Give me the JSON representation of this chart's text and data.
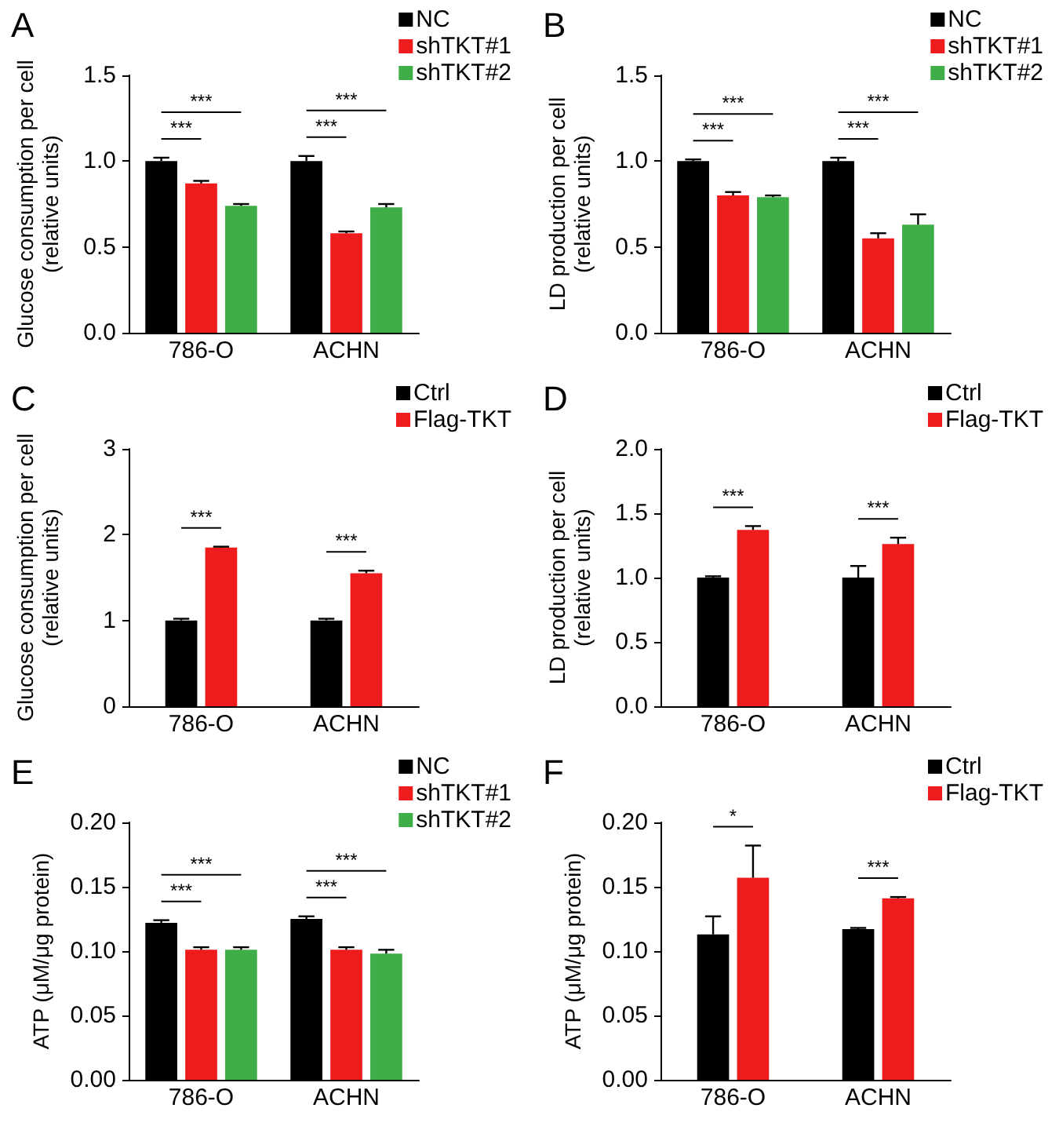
{
  "chart_data": [
    {
      "type": "bar",
      "title": "A",
      "ylabel": "Glucose consumption per cell\n(relative units)",
      "categories": [
        "786-O",
        "ACHN"
      ],
      "legend": "top right",
      "ylim": [
        0,
        1.5
      ],
      "yticks": [
        {
          "value": 0,
          "label": "0.0"
        },
        0.5,
        {
          "value": 1,
          "label": "1.0"
        },
        1.5
      ],
      "series": [
        {
          "name": "NC",
          "color": "#000000",
          "values": [
            1.0,
            1.0
          ],
          "errors": [
            0.02,
            0.03
          ]
        },
        {
          "name": "shTKT#1",
          "color": "#ee1c1c",
          "values": [
            0.87,
            0.58
          ],
          "errors": [
            0.015,
            0.01
          ]
        },
        {
          "name": "shTKT#2",
          "color": "#3fae49",
          "values": [
            0.74,
            0.73
          ],
          "errors": [
            0.01,
            0.02
          ]
        }
      ],
      "annotations": [
        "***",
        "***",
        "***",
        "***"
      ]
    },
    {
      "type": "bar",
      "title": "B",
      "ylabel": "LD production per cell\n(relative units)",
      "categories": [
        "786-O",
        "ACHN"
      ],
      "legend": "top right",
      "ylim": [
        0,
        1.5
      ],
      "yticks": [
        {
          "value": 0,
          "label": "0.0"
        },
        0.5,
        {
          "value": 1,
          "label": "1.0"
        },
        1.5
      ],
      "series": [
        {
          "name": "NC",
          "color": "#000000",
          "values": [
            1.0,
            1.0
          ],
          "errors": [
            0.01,
            0.02
          ]
        },
        {
          "name": "shTKT#1",
          "color": "#ee1c1c",
          "values": [
            0.8,
            0.55
          ],
          "errors": [
            0.02,
            0.03
          ]
        },
        {
          "name": "shTKT#2",
          "color": "#3fae49",
          "values": [
            0.79,
            0.63
          ],
          "errors": [
            0.01,
            0.06
          ]
        }
      ],
      "annotations": [
        "***",
        "***",
        "***",
        "***"
      ]
    },
    {
      "type": "bar",
      "title": "C",
      "ylabel": "Glucose consumption per cell\n(relative units)",
      "categories": [
        "786-O",
        "ACHN"
      ],
      "legend": "top right",
      "ylim": [
        0,
        3
      ],
      "yticks": [
        0,
        1,
        2,
        3
      ],
      "series": [
        {
          "name": "Ctrl",
          "color": "#000000",
          "values": [
            1.0,
            1.0
          ],
          "errors": [
            0.02,
            0.02
          ]
        },
        {
          "name": "Flag-TKT",
          "color": "#ee1c1c",
          "values": [
            1.85,
            1.55
          ],
          "errors": [
            0.01,
            0.03
          ]
        }
      ],
      "annotations": [
        "***",
        "***"
      ]
    },
    {
      "type": "bar",
      "title": "D",
      "ylabel": "LD production per cell\n(relative units)",
      "categories": [
        "786-O",
        "ACHN"
      ],
      "legend": "top right",
      "ylim": [
        0,
        2
      ],
      "yticks": [
        {
          "value": 0,
          "label": "0.0"
        },
        0.5,
        {
          "value": 1,
          "label": "1.0"
        },
        1.5,
        {
          "value": 2,
          "label": "2.0"
        }
      ],
      "series": [
        {
          "name": "Ctrl",
          "color": "#000000",
          "values": [
            1.0,
            1.0
          ],
          "errors": [
            0.01,
            0.09
          ]
        },
        {
          "name": "Flag-TKT",
          "color": "#ee1c1c",
          "values": [
            1.37,
            1.26
          ],
          "errors": [
            0.03,
            0.05
          ]
        }
      ],
      "annotations": [
        "***",
        "***"
      ]
    },
    {
      "type": "bar",
      "title": "E",
      "ylabel": "ATP (μM/μg protein)",
      "categories": [
        "786-O",
        "ACHN"
      ],
      "legend": "top right",
      "ylim": [
        0,
        0.2
      ],
      "yticks": [
        {
          "value": 0,
          "label": "0.00"
        },
        0.05,
        {
          "value": 0.1,
          "label": "0.10"
        },
        0.15,
        {
          "value": 0.2,
          "label": "0.20"
        }
      ],
      "series": [
        {
          "name": "NC",
          "color": "#000000",
          "values": [
            0.122,
            0.125
          ],
          "errors": [
            0.002,
            0.002
          ]
        },
        {
          "name": "shTKT#1",
          "color": "#ee1c1c",
          "values": [
            0.101,
            0.101
          ],
          "errors": [
            0.002,
            0.002
          ]
        },
        {
          "name": "shTKT#2",
          "color": "#3fae49",
          "values": [
            0.101,
            0.098
          ],
          "errors": [
            0.002,
            0.003
          ]
        }
      ],
      "annotations": [
        "***",
        "***",
        "***",
        "***"
      ]
    },
    {
      "type": "bar",
      "title": "F",
      "ylabel": "ATP (μM/μg protein)",
      "categories": [
        "786-O",
        "ACHN"
      ],
      "legend": "top right",
      "ylim": [
        0,
        0.2
      ],
      "yticks": [
        {
          "value": 0,
          "label": "0.00"
        },
        0.05,
        {
          "value": 0.1,
          "label": "0.10"
        },
        0.15,
        {
          "value": 0.2,
          "label": "0.20"
        }
      ],
      "series": [
        {
          "name": "Ctrl",
          "color": "#000000",
          "values": [
            0.113,
            0.117
          ],
          "errors": [
            0.014,
            0.001
          ]
        },
        {
          "name": "Flag-TKT",
          "color": "#ee1c1c",
          "values": [
            0.157,
            0.141
          ],
          "errors": [
            0.025,
            0.001
          ]
        }
      ],
      "annotations": [
        "*",
        "***"
      ]
    }
  ]
}
